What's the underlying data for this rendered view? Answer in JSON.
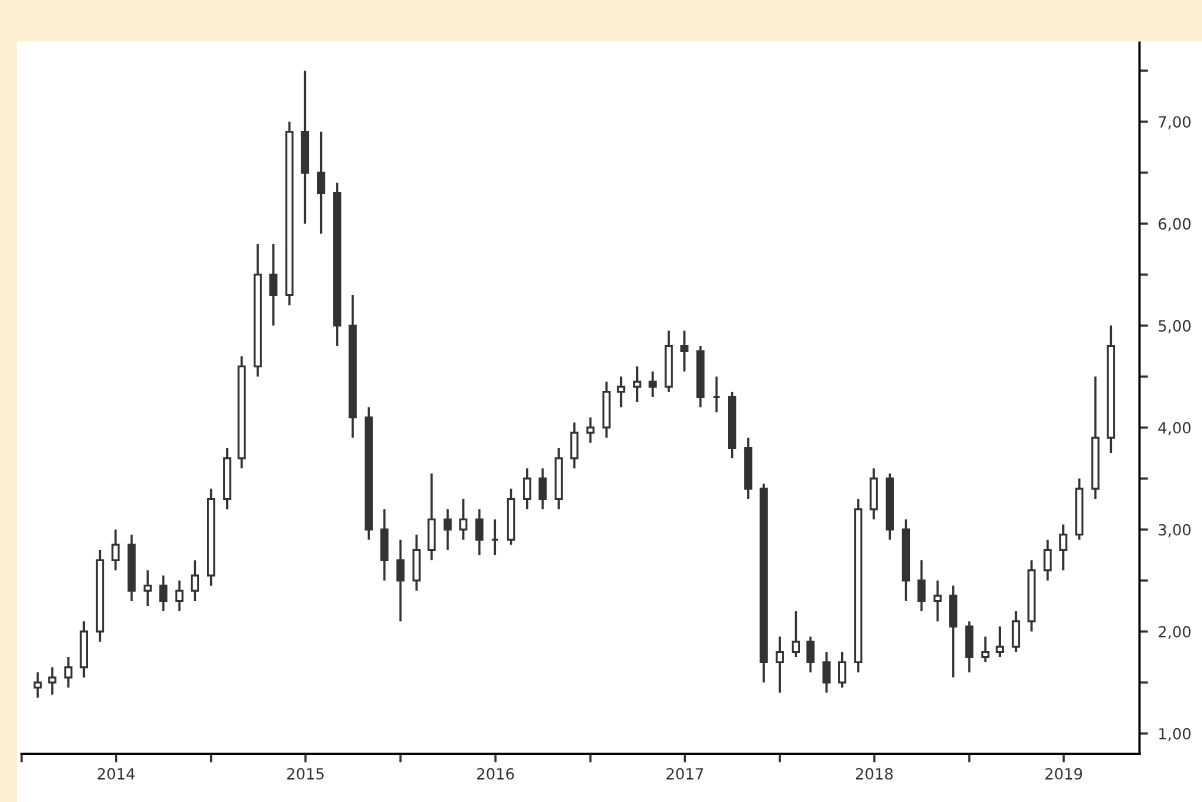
{
  "chart_data": {
    "type": "candlestick",
    "color": "#333333",
    "x": [
      "2014-02",
      "2014-03",
      "2014-04",
      "2014-05",
      "2014-06",
      "2014-07",
      "2014-08",
      "2014-09",
      "2014-10",
      "2014-11",
      "2014-12",
      "2015-01",
      "2015-02",
      "2015-03",
      "2015-04",
      "2015-05",
      "2015-06",
      "2015-07",
      "2015-08",
      "2015-09",
      "2015-10",
      "2015-11",
      "2015-12",
      "2016-01",
      "2016-02",
      "2016-03",
      "2016-04",
      "2016-05",
      "2016-06",
      "2016-07",
      "2016-08",
      "2016-09",
      "2016-10",
      "2016-11",
      "2016-12",
      "2017-01",
      "2017-02",
      "2017-03",
      "2017-04",
      "2017-05",
      "2017-06",
      "2017-07",
      "2017-08",
      "2017-09",
      "2017-10",
      "2017-11",
      "2017-12",
      "2018-01",
      "2018-02",
      "2018-03",
      "2018-04",
      "2018-05",
      "2018-06",
      "2018-07",
      "2018-08",
      "2018-09",
      "2018-10",
      "2018-11",
      "2018-12",
      "2019-01",
      "2019-02",
      "2019-03",
      "2019-04",
      "2019-05",
      "2019-06",
      "2019-07",
      "2019-08",
      "2019-09",
      "2019-10"
    ],
    "ohlc": [
      [
        1.45,
        1.6,
        1.35,
        1.5
      ],
      [
        1.5,
        1.65,
        1.38,
        1.55
      ],
      [
        1.55,
        1.75,
        1.45,
        1.65
      ],
      [
        1.65,
        2.1,
        1.55,
        2.0
      ],
      [
        2.0,
        2.8,
        1.9,
        2.7
      ],
      [
        2.7,
        3.0,
        2.6,
        2.85
      ],
      [
        2.85,
        2.95,
        2.3,
        2.4
      ],
      [
        2.4,
        2.6,
        2.25,
        2.45
      ],
      [
        2.45,
        2.55,
        2.2,
        2.3
      ],
      [
        2.3,
        2.5,
        2.2,
        2.4
      ],
      [
        2.4,
        2.7,
        2.3,
        2.55
      ],
      [
        2.55,
        3.4,
        2.45,
        3.3
      ],
      [
        3.3,
        3.8,
        3.2,
        3.7
      ],
      [
        3.7,
        4.7,
        3.6,
        4.6
      ],
      [
        4.6,
        5.8,
        4.5,
        5.5
      ],
      [
        5.5,
        5.8,
        5.0,
        5.3
      ],
      [
        5.3,
        7.0,
        5.2,
        6.9
      ],
      [
        6.9,
        7.5,
        6.0,
        6.5
      ],
      [
        6.5,
        6.9,
        5.9,
        6.3
      ],
      [
        6.3,
        6.4,
        4.8,
        5.0
      ],
      [
        5.0,
        5.3,
        3.9,
        4.1
      ],
      [
        4.1,
        4.2,
        2.9,
        3.0
      ],
      [
        3.0,
        3.2,
        2.5,
        2.7
      ],
      [
        2.7,
        2.9,
        2.1,
        2.5
      ],
      [
        2.5,
        2.95,
        2.4,
        2.8
      ],
      [
        2.8,
        3.55,
        2.7,
        3.1
      ],
      [
        3.1,
        3.2,
        2.8,
        3.0
      ],
      [
        3.0,
        3.3,
        2.9,
        3.1
      ],
      [
        3.1,
        3.2,
        2.75,
        2.9
      ],
      [
        2.9,
        3.1,
        2.75,
        2.9
      ],
      [
        2.9,
        3.4,
        2.85,
        3.3
      ],
      [
        3.3,
        3.6,
        3.2,
        3.5
      ],
      [
        3.5,
        3.6,
        3.2,
        3.3
      ],
      [
        3.3,
        3.8,
        3.2,
        3.7
      ],
      [
        3.7,
        4.05,
        3.6,
        3.95
      ],
      [
        3.95,
        4.1,
        3.85,
        4.0
      ],
      [
        4.0,
        4.45,
        3.9,
        4.35
      ],
      [
        4.35,
        4.5,
        4.2,
        4.4
      ],
      [
        4.4,
        4.6,
        4.25,
        4.45
      ],
      [
        4.45,
        4.55,
        4.3,
        4.4
      ],
      [
        4.4,
        4.95,
        4.35,
        4.8
      ],
      [
        4.8,
        4.95,
        4.55,
        4.75
      ],
      [
        4.75,
        4.8,
        4.2,
        4.3
      ],
      [
        4.3,
        4.5,
        4.15,
        4.3
      ],
      [
        4.3,
        4.35,
        3.7,
        3.8
      ],
      [
        3.8,
        3.9,
        3.3,
        3.4
      ],
      [
        3.4,
        3.45,
        1.5,
        1.7
      ],
      [
        1.7,
        1.95,
        1.4,
        1.8
      ],
      [
        1.8,
        2.2,
        1.75,
        1.9
      ],
      [
        1.9,
        1.95,
        1.6,
        1.7
      ],
      [
        1.7,
        1.8,
        1.4,
        1.5
      ],
      [
        1.5,
        1.8,
        1.45,
        1.7
      ],
      [
        1.7,
        3.3,
        1.6,
        3.2
      ],
      [
        3.2,
        3.6,
        3.1,
        3.5
      ],
      [
        3.5,
        3.55,
        2.9,
        3.0
      ],
      [
        3.0,
        3.1,
        2.3,
        2.5
      ],
      [
        2.5,
        2.7,
        2.2,
        2.3
      ],
      [
        2.3,
        2.5,
        2.1,
        2.35
      ],
      [
        2.35,
        2.45,
        1.55,
        2.05
      ],
      [
        2.05,
        2.1,
        1.6,
        1.75
      ],
      [
        1.75,
        1.95,
        1.7,
        1.8
      ],
      [
        1.8,
        2.05,
        1.75,
        1.85
      ],
      [
        1.85,
        2.2,
        1.8,
        2.1
      ],
      [
        2.1,
        2.7,
        2.0,
        2.6
      ],
      [
        2.6,
        2.9,
        2.5,
        2.8
      ],
      [
        2.8,
        3.05,
        2.6,
        2.95
      ],
      [
        2.95,
        3.5,
        2.9,
        3.4
      ],
      [
        3.4,
        4.5,
        3.3,
        3.9
      ],
      [
        3.9,
        5.0,
        3.75,
        4.8
      ]
    ],
    "xlim": [
      "2014-01-01",
      "2019-11-25"
    ],
    "xticks": [
      {
        "value": "2014-01-01",
        "label": null
      },
      {
        "value": "2014-07-02",
        "label": "2014"
      },
      {
        "value": "2015-01-01",
        "label": null
      },
      {
        "value": "2015-07-02",
        "label": "2015"
      },
      {
        "value": "2016-01-01",
        "label": null
      },
      {
        "value": "2016-07-02",
        "label": "2016"
      },
      {
        "value": "2017-01-01",
        "label": null
      },
      {
        "value": "2017-07-02",
        "label": "2017"
      },
      {
        "value": "2018-01-01",
        "label": null
      },
      {
        "value": "2018-07-02",
        "label": "2018"
      },
      {
        "value": "2019-01-01",
        "label": null
      },
      {
        "value": "2019-07-02",
        "label": "2019"
      }
    ],
    "ylim": [
      0.8,
      7.8
    ],
    "yticks": [
      {
        "value": 1,
        "label": "1,00"
      },
      {
        "value": 1.5,
        "label": null
      },
      {
        "value": 2,
        "label": "2,00"
      },
      {
        "value": 2.5,
        "label": null
      },
      {
        "value": 3,
        "label": "3,00"
      },
      {
        "value": 3.5,
        "label": null
      },
      {
        "value": 4,
        "label": "4,00"
      },
      {
        "value": 4.5,
        "label": null
      },
      {
        "value": 5,
        "label": "5,00"
      },
      {
        "value": 5.5,
        "label": null
      },
      {
        "value": 6,
        "label": "6,00"
      },
      {
        "value": 6.5,
        "label": null
      },
      {
        "value": 7,
        "label": "7,00"
      },
      {
        "value": 7.5,
        "label": null
      }
    ],
    "grid": false,
    "legend": false
  }
}
